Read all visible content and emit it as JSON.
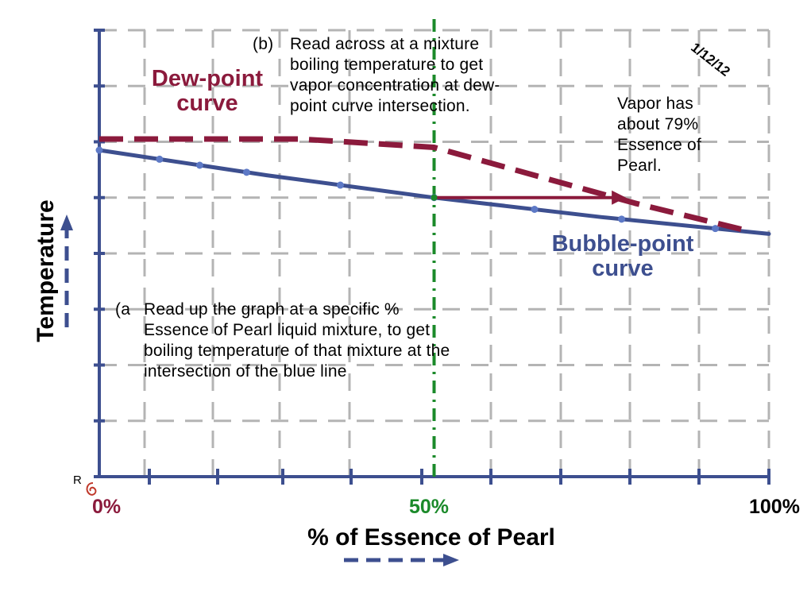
{
  "chart_data": {
    "type": "line",
    "xlabel": "% of Essence of Pearl",
    "ylabel": "Temperature",
    "x_tick_labels": [
      {
        "x": 0,
        "label": "0%",
        "color": "#8b1a3c"
      },
      {
        "x": 50,
        "label": "50%",
        "color": "#1b8a2a"
      },
      {
        "x": 100,
        "label": "100%",
        "color": "#000000"
      }
    ],
    "xlim": [
      0,
      100
    ],
    "ylim": [
      0,
      8
    ],
    "grid": true,
    "series": [
      {
        "name": "Dew-point curve",
        "style": "dashed",
        "color": "#8b1a3c",
        "x": [
          0,
          30,
          50,
          80,
          97
        ],
        "y": [
          6.05,
          6.05,
          5.9,
          4.9,
          4.4
        ]
      },
      {
        "name": "Bubble-point curve",
        "style": "solid",
        "color": "#3d4f8f",
        "x": [
          0,
          25,
          50,
          75,
          100
        ],
        "y": [
          5.85,
          5.4,
          5.0,
          4.65,
          4.35
        ]
      }
    ],
    "reference_line": {
      "x": 50,
      "color": "#1b8a2a",
      "style": "dash-dot"
    },
    "read_across_arrow": {
      "from": [
        50,
        5.0
      ],
      "to": [
        77,
        5.0
      ],
      "color": "#8b1a3c"
    }
  },
  "labels": {
    "dew_point": "Dew-point\ncurve",
    "bubble_point": "Bubble-point\ncurve",
    "annotation_b_letter": "(b)",
    "annotation_b": "Read across at a mixture\nboiling temperature to get\nvapor concentration at dew-\npoint curve intersection.",
    "annotation_a_letter": "(a",
    "annotation_a": "Read up the graph at a specific %\nEssence of Pearl liquid mixture, to get\nboiling temperature of that mixture at the\nintersection of the blue line",
    "vapor_note": "Vapor has\nabout 79%\nEssence of\nPearl.",
    "date": "1/12/12",
    "corner_mark": "R"
  },
  "colors": {
    "axis": "#3d4f8f",
    "dew": "#8b1a3c",
    "bubble": "#3d4f8f",
    "reference": "#1b8a2a",
    "grid": "#b4b4b4"
  }
}
